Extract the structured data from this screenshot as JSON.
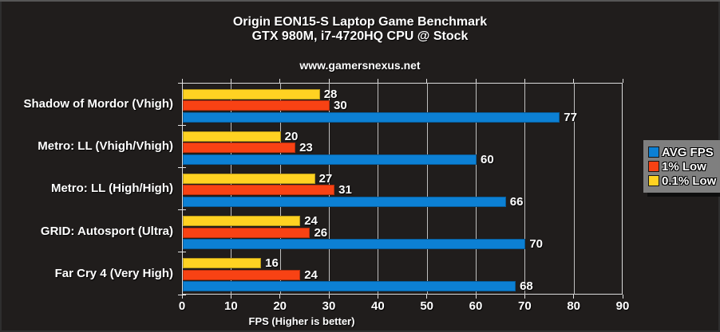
{
  "header": {
    "title_line1": "Origin EON15-S Laptop Game Benchmark",
    "title_line2": "GTX 980M, i7-4720HQ CPU @ Stock",
    "website": "www.gamersnexus.net"
  },
  "chart_data": {
    "type": "bar",
    "orientation": "horizontal",
    "title": "Origin EON15-S Laptop Game Benchmark — GTX 980M, i7-4720HQ CPU @ Stock",
    "categories": [
      "Shadow of Mordor (Vhigh)",
      "Metro: LL (Vhigh/Vhigh)",
      "Metro: LL (High/High)",
      "GRID: Autosport (Ultra)",
      "Far Cry 4 (Very High)"
    ],
    "series": [
      {
        "name": "AVG FPS",
        "color": "#0c80d4",
        "values": [
          77,
          60,
          66,
          70,
          68
        ]
      },
      {
        "name": "1% Low",
        "color": "#f84214",
        "values": [
          30,
          23,
          31,
          26,
          24
        ]
      },
      {
        "name": "0.1% Low",
        "color": "#ffd222",
        "values": [
          28,
          20,
          27,
          24,
          16
        ]
      }
    ],
    "bar_order_top_to_bottom": [
      "0.1% Low",
      "1% Low",
      "AVG FPS"
    ],
    "xlabel": "FPS (Higher is better)",
    "xlim": [
      0,
      90
    ],
    "xticks": [
      0,
      10,
      20,
      30,
      40,
      50,
      60,
      70,
      80,
      90
    ],
    "grid": true,
    "legend_position": "right",
    "background_color": "#201d1c"
  }
}
